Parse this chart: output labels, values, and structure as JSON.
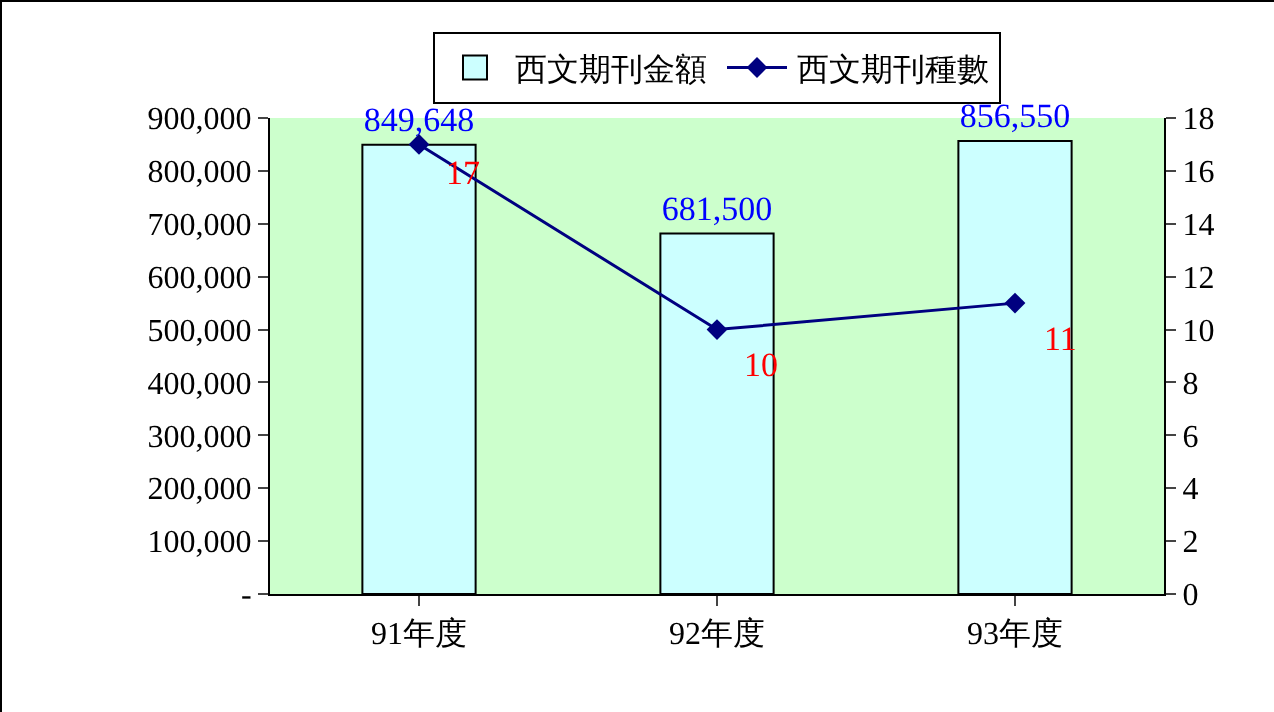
{
  "chart_data": {
    "type": "bar",
    "categories": [
      "91年度",
      "92年度",
      "93年度"
    ],
    "series": [
      {
        "name": "西文期刊金額",
        "color": "#ccffff",
        "values": [
          849648,
          681500,
          856550
        ],
        "value_labels": [
          "849,648",
          "681,500",
          "856,550"
        ]
      },
      {
        "name": "西文期刊種數",
        "type": "line",
        "axis": "y2",
        "color": "#000080",
        "values": [
          17,
          10,
          11
        ],
        "value_labels": [
          "17",
          "10",
          "11"
        ],
        "marker": "diamond"
      }
    ],
    "ylim": [
      0,
      900000
    ],
    "yticks": [
      {
        "value": 0,
        "label": "-"
      },
      {
        "value": 100000,
        "label": "100,000"
      },
      {
        "value": 200000,
        "label": "200,000"
      },
      {
        "value": 300000,
        "label": "300,000"
      },
      {
        "value": 400000,
        "label": "400,000"
      },
      {
        "value": 500000,
        "label": "500,000"
      },
      {
        "value": 600000,
        "label": "600,000"
      },
      {
        "value": 700000,
        "label": "700,000"
      },
      {
        "value": 800000,
        "label": "800,000"
      },
      {
        "value": 900000,
        "label": "900,000"
      }
    ],
    "y2lim": [
      0,
      18
    ],
    "y2ticks": [
      0,
      2,
      4,
      6,
      8,
      10,
      12,
      14,
      16,
      18
    ],
    "legend": "top",
    "grid": false
  }
}
